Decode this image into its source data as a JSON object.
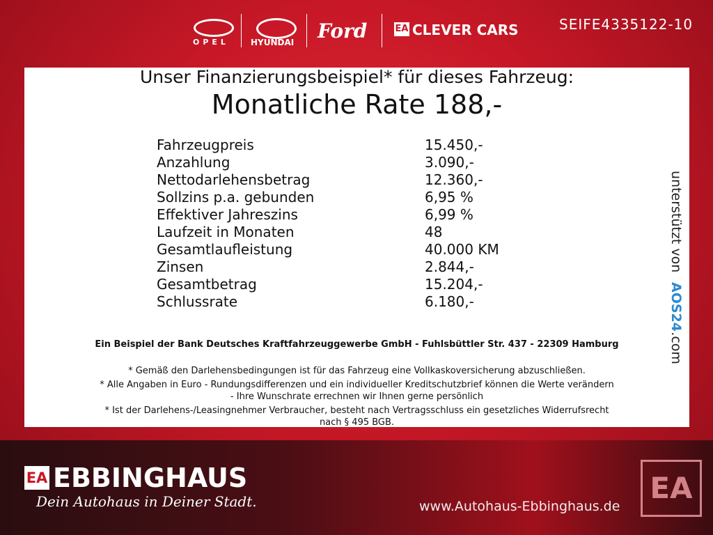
{
  "header": {
    "brands": [
      "OPEL",
      "HYUNDAI",
      "Ford",
      "CLEVER CARS"
    ],
    "ea_mark": "EA",
    "reference": "SEIFE4335122-10"
  },
  "offer": {
    "intro": "Unser Finanzierungsbeispiel* für dieses Fahrzeug:",
    "headline": "Monatliche Rate 188,-",
    "rows": [
      [
        "Fahrzeugpreis",
        "15.450,-"
      ],
      [
        "Anzahlung",
        "3.090,-"
      ],
      [
        "Nettodarlehensbetrag",
        "12.360,-"
      ],
      [
        "Sollzins p.a. gebunden",
        "6,95 %"
      ],
      [
        "Effektiver Jahreszins",
        "6,99 %"
      ],
      [
        "Laufzeit in Monaten",
        "48"
      ],
      [
        "Gesamtlaufleistung",
        "40.000 KM"
      ],
      [
        "Zinsen",
        "2.844,-"
      ],
      [
        "Gesamtbetrag",
        "15.204,-"
      ],
      [
        "Schlussrate",
        "6.180,-"
      ]
    ],
    "bank_note": "Ein Beispiel der Bank Deutsches Kraftfahrzeuggewerbe GmbH - Fuhlsbüttler Str. 437 - 22309 Hamburg",
    "footnotes": [
      "* Gemäß den Darlehensbedingungen ist für das Fahrzeug eine Vollkaskoversicherung abzuschließen.",
      "* Alle Angaben in Euro - Rundungsdifferenzen und ein individueller Kreditschutzbrief können die Werte verändern",
      "- Ihre Wunschrate errechnen wir Ihnen gerne persönlich",
      "* Ist der Darlehens-/Leasingnehmer Verbraucher, besteht nach Vertragsschluss ein gesetzliches Widerrufsrecht",
      "nach § 495 BGB."
    ]
  },
  "sponsor": {
    "prefix": "unterstützt von",
    "brand": "AOS24",
    "suffix": ".com"
  },
  "footer": {
    "company": "EBBINGHAUS",
    "slogan": "Dein Autohaus in Deiner Stadt.",
    "url": "www.Autohaus-Ebbinghaus.de"
  }
}
